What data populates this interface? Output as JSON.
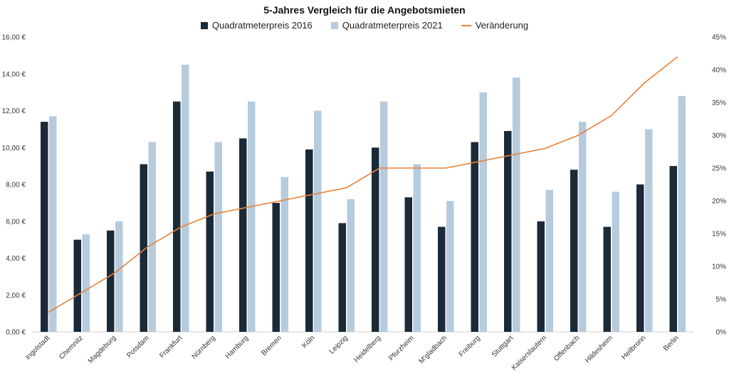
{
  "chart_data": {
    "type": "bar",
    "title": "5-Jahres Vergleich für die Angebotsmieten",
    "categories": [
      "Ingolstadt",
      "Chemnitz",
      "Magdeburg",
      "Potsdam",
      "Frankfurt",
      "Nürnberg",
      "Hamburg",
      "Bremen",
      "Köln",
      "Leipzig",
      "Heidelberg",
      "Pforzheim",
      "M'gladbach",
      "Freiburg",
      "Stuttgart",
      "Kaiserslautern",
      "Offenbach",
      "Hildesheim",
      "Heilbronn",
      "Berlin"
    ],
    "series": [
      {
        "name": "Quadratmeterpreis 2016",
        "type": "bar",
        "axis": "left",
        "color": "#1b2a38",
        "values": [
          11.4,
          5.0,
          5.5,
          9.1,
          12.5,
          8.7,
          10.5,
          7.0,
          9.9,
          5.9,
          10.0,
          7.3,
          5.7,
          10.3,
          10.9,
          6.0,
          8.8,
          5.7,
          8.0,
          9.0
        ]
      },
      {
        "name": "Quadratmeterpreis 2021",
        "type": "bar",
        "axis": "left",
        "color": "#b6cbdd",
        "values": [
          11.7,
          5.3,
          6.0,
          10.3,
          14.5,
          10.3,
          12.5,
          8.4,
          12.0,
          7.2,
          12.5,
          9.1,
          7.1,
          13.0,
          13.8,
          7.7,
          11.4,
          7.6,
          11.0,
          12.8
        ]
      },
      {
        "name": "Veränderung",
        "type": "line",
        "axis": "right",
        "color": "#e8823a",
        "values": [
          3,
          6,
          9,
          13,
          16,
          18,
          19,
          20,
          21,
          22,
          25,
          25,
          25,
          26,
          27,
          28,
          30,
          33,
          38,
          42
        ]
      }
    ],
    "y_left": {
      "ylim": [
        0,
        16
      ],
      "ticks": [
        "0,00 €",
        "2,00 €",
        "4,00 €",
        "6,00 €",
        "8,00 €",
        "10,00 €",
        "12,00 €",
        "14,00 €",
        "16,00 €"
      ]
    },
    "y_right": {
      "ylim": [
        0,
        45
      ],
      "ticks": [
        "0%",
        "5%",
        "10%",
        "15%",
        "20%",
        "25%",
        "30%",
        "35%",
        "40%",
        "45%"
      ]
    },
    "legend_position": "top-center",
    "grid": false
  }
}
